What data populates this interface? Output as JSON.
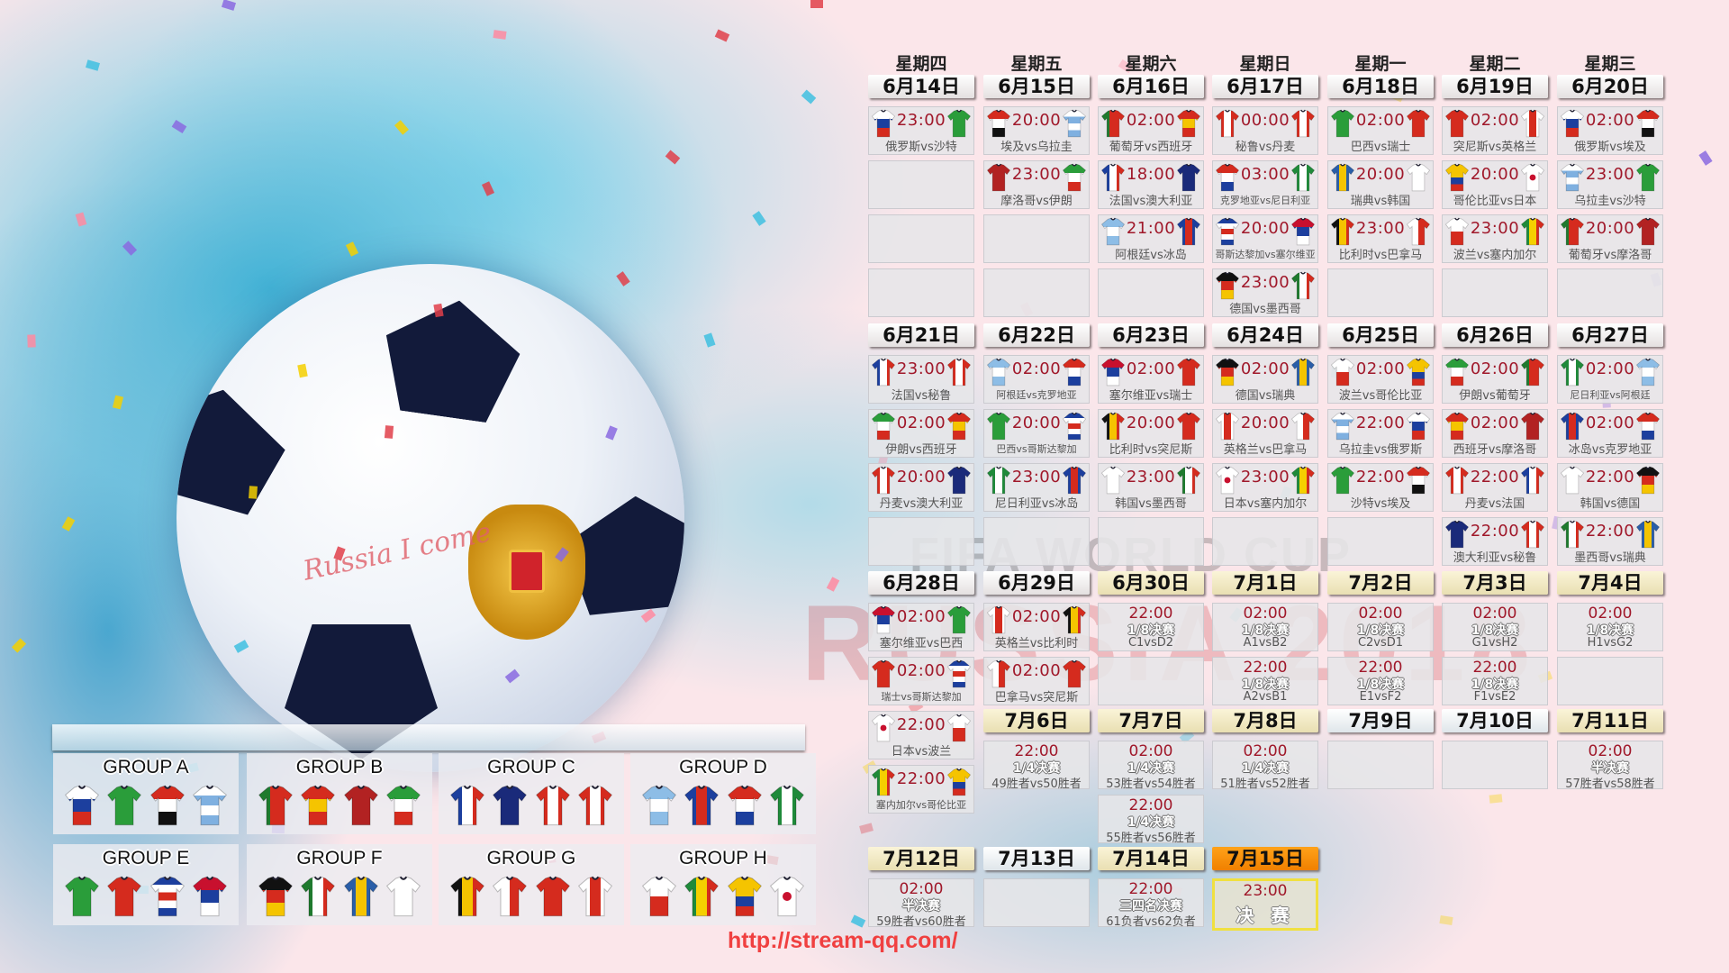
{
  "colors": {
    "time": "#a0182a",
    "final_header": "#f08000",
    "url": "#f04040"
  },
  "watermark": {
    "line1": "FIFA WORLD CUP",
    "line2": "RUSSIA 2018"
  },
  "ball_text": "Russia I come",
  "url": "http://stream-qq.com/",
  "weekdays": [
    "星期四",
    "星期五",
    "星期六",
    "星期日",
    "星期一",
    "星期二",
    "星期三"
  ],
  "weeks": [
    {
      "days": [
        {
          "date": "6月14日",
          "kind": "group",
          "matches": [
            {
              "time": "23:00",
              "home": "kit-russia",
              "away": "kit-saudi",
              "label": "俄罗斯vs沙特"
            },
            null,
            null,
            null
          ]
        },
        {
          "date": "6月15日",
          "kind": "group",
          "matches": [
            {
              "time": "20:00",
              "home": "kit-egypt",
              "away": "kit-uruguay",
              "label": "埃及vs乌拉圭"
            },
            {
              "time": "23:00",
              "home": "kit-morocco",
              "away": "kit-iran",
              "label": "摩洛哥vs伊朗"
            },
            null,
            null
          ]
        },
        {
          "date": "6月16日",
          "kind": "group",
          "matches": [
            {
              "time": "02:00",
              "home": "kit-portugal",
              "away": "kit-spain",
              "label": "葡萄牙vs西班牙"
            },
            {
              "time": "18:00",
              "home": "kit-france",
              "away": "kit-australia",
              "label": "法国vs澳大利亚"
            },
            {
              "time": "21:00",
              "home": "kit-argentina",
              "away": "kit-iceland",
              "label": "阿根廷vs冰岛"
            },
            null
          ]
        },
        {
          "date": "6月17日",
          "kind": "group",
          "matches": [
            {
              "time": "00:00",
              "home": "kit-peru",
              "away": "kit-denmark",
              "label": "秘鲁vs丹麦"
            },
            {
              "time": "03:00",
              "home": "kit-croatia",
              "away": "kit-nigeria",
              "label": "克罗地亚vs尼日利亚"
            },
            {
              "time": "20:00",
              "home": "kit-costarica",
              "away": "kit-serbia",
              "label": "哥斯达黎加vs塞尔维亚"
            },
            {
              "time": "23:00",
              "home": "kit-germany",
              "away": "kit-mexico",
              "label": "德国vs墨西哥"
            }
          ]
        },
        {
          "date": "6月18日",
          "kind": "group",
          "matches": [
            {
              "time": "02:00",
              "home": "kit-brazil",
              "away": "kit-switzerland",
              "label": "巴西vs瑞士"
            },
            {
              "time": "20:00",
              "home": "kit-sweden",
              "away": "kit-korea",
              "label": "瑞典vs韩国"
            },
            {
              "time": "23:00",
              "home": "kit-belgium",
              "away": "kit-panama",
              "label": "比利时vs巴拿马"
            },
            null
          ]
        },
        {
          "date": "6月19日",
          "kind": "group",
          "matches": [
            {
              "time": "02:00",
              "home": "kit-tunisia",
              "away": "kit-england",
              "label": "突尼斯vs英格兰"
            },
            {
              "time": "20:00",
              "home": "kit-colombia",
              "away": "kit-japan",
              "label": "哥伦比亚vs日本"
            },
            {
              "time": "23:00",
              "home": "kit-poland",
              "away": "kit-senegal",
              "label": "波兰vs塞内加尔"
            },
            null
          ]
        },
        {
          "date": "6月20日",
          "kind": "group",
          "matches": [
            {
              "time": "02:00",
              "home": "kit-russia",
              "away": "kit-egypt",
              "label": "俄罗斯vs埃及"
            },
            {
              "time": "23:00",
              "home": "kit-uruguay",
              "away": "kit-saudi",
              "label": "乌拉圭vs沙特"
            },
            {
              "time": "20:00",
              "home": "kit-portugal",
              "away": "kit-morocco",
              "label": "葡萄牙vs摩洛哥"
            },
            null
          ]
        }
      ]
    },
    {
      "days": [
        {
          "date": "6月21日",
          "kind": "group",
          "matches": [
            {
              "time": "23:00",
              "home": "kit-france",
              "away": "kit-peru",
              "label": "法国vs秘鲁"
            },
            {
              "time": "02:00",
              "home": "kit-iran",
              "away": "kit-spain",
              "label": "伊朗vs西班牙"
            },
            {
              "time": "20:00",
              "home": "kit-denmark",
              "away": "kit-australia",
              "label": "丹麦vs澳大利亚"
            },
            null
          ]
        },
        {
          "date": "6月22日",
          "kind": "group",
          "matches": [
            {
              "time": "02:00",
              "home": "kit-argentina",
              "away": "kit-croatia",
              "label": "阿根廷vs克罗地亚"
            },
            {
              "time": "20:00",
              "home": "kit-brazil",
              "away": "kit-costarica",
              "label": "巴西vs哥斯达黎加"
            },
            {
              "time": "23:00",
              "home": "kit-nigeria",
              "away": "kit-iceland",
              "label": "尼日利亚vs冰岛"
            },
            null
          ]
        },
        {
          "date": "6月23日",
          "kind": "group",
          "matches": [
            {
              "time": "02:00",
              "home": "kit-serbia",
              "away": "kit-switzerland",
              "label": "塞尔维亚vs瑞士"
            },
            {
              "time": "20:00",
              "home": "kit-belgium",
              "away": "kit-tunisia",
              "label": "比利时vs突尼斯"
            },
            {
              "time": "23:00",
              "home": "kit-korea",
              "away": "kit-mexico",
              "label": "韩国vs墨西哥"
            },
            null
          ]
        },
        {
          "date": "6月24日",
          "kind": "group",
          "matches": [
            {
              "time": "02:00",
              "home": "kit-germany",
              "away": "kit-sweden",
              "label": "德国vs瑞典"
            },
            {
              "time": "20:00",
              "home": "kit-england",
              "away": "kit-panama",
              "label": "英格兰vs巴拿马"
            },
            {
              "time": "23:00",
              "home": "kit-japan",
              "away": "kit-senegal",
              "label": "日本vs塞内加尔"
            },
            null
          ]
        },
        {
          "date": "6月25日",
          "kind": "group",
          "matches": [
            {
              "time": "02:00",
              "home": "kit-poland",
              "away": "kit-colombia",
              "label": "波兰vs哥伦比亚"
            },
            {
              "time": "22:00",
              "home": "kit-uruguay",
              "away": "kit-russia",
              "label": "乌拉圭vs俄罗斯"
            },
            {
              "time": "22:00",
              "home": "kit-saudi",
              "away": "kit-egypt",
              "label": "沙特vs埃及"
            },
            null
          ]
        },
        {
          "date": "6月26日",
          "kind": "group",
          "matches": [
            {
              "time": "02:00",
              "home": "kit-iran",
              "away": "kit-portugal",
              "label": "伊朗vs葡萄牙"
            },
            {
              "time": "02:00",
              "home": "kit-spain",
              "away": "kit-morocco",
              "label": "西班牙vs摩洛哥"
            },
            {
              "time": "22:00",
              "home": "kit-denmark",
              "away": "kit-france",
              "label": "丹麦vs法国"
            },
            {
              "time": "22:00",
              "home": "kit-australia",
              "away": "kit-peru",
              "label": "澳大利亚vs秘鲁"
            }
          ]
        },
        {
          "date": "6月27日",
          "kind": "group",
          "matches": [
            {
              "time": "02:00",
              "home": "kit-nigeria",
              "away": "kit-argentina",
              "label": "尼日利亚vs阿根廷"
            },
            {
              "time": "02:00",
              "home": "kit-iceland",
              "away": "kit-croatia",
              "label": "冰岛vs克罗地亚"
            },
            {
              "time": "22:00",
              "home": "kit-korea",
              "away": "kit-germany",
              "label": "韩国vs德国"
            },
            {
              "time": "22:00",
              "home": "kit-mexico",
              "away": "kit-sweden",
              "label": "墨西哥vs瑞典"
            }
          ]
        }
      ]
    },
    {
      "days": [
        {
          "date": "6月28日",
          "kind": "group",
          "matches": [
            {
              "time": "02:00",
              "home": "kit-serbia",
              "away": "kit-brazil",
              "label": "塞尔维亚vs巴西"
            },
            {
              "time": "02:00",
              "home": "kit-switzerland",
              "away": "kit-costarica",
              "label": "瑞士vs哥斯达黎加"
            },
            {
              "time": "22:00",
              "home": "kit-japan",
              "away": "kit-poland",
              "label": "日本vs波兰"
            },
            {
              "time": "22:00",
              "home": "kit-senegal",
              "away": "kit-colombia",
              "label": "塞内加尔vs哥伦比亚"
            }
          ]
        },
        {
          "date": "6月29日",
          "kind": "group",
          "matches": [
            {
              "time": "02:00",
              "home": "kit-england",
              "away": "kit-belgium",
              "label": "英格兰vs比利时"
            },
            {
              "time": "02:00",
              "home": "kit-panama",
              "away": "kit-tunisia",
              "label": "巴拿马vs突尼斯"
            }
          ]
        },
        {
          "date": "6月30日",
          "kind": "knockout",
          "matches": [
            {
              "time": "22:00",
              "round": "1/8决赛",
              "pair": "C1vsD2"
            },
            null
          ]
        },
        {
          "date": "7月1日",
          "kind": "knockout",
          "matches": [
            {
              "time": "02:00",
              "round": "1/8决赛",
              "pair": "A1vsB2"
            },
            {
              "time": "22:00",
              "round": "1/8决赛",
              "pair": "A2vsB1"
            }
          ]
        },
        {
          "date": "7月2日",
          "kind": "knockout",
          "matches": [
            {
              "time": "02:00",
              "round": "1/8决赛",
              "pair": "C2vsD1"
            },
            {
              "time": "22:00",
              "round": "1/8决赛",
              "pair": "E1vsF2"
            }
          ]
        },
        {
          "date": "7月3日",
          "kind": "knockout",
          "matches": [
            {
              "time": "02:00",
              "round": "1/8决赛",
              "pair": "G1vsH2"
            },
            {
              "time": "22:00",
              "round": "1/8决赛",
              "pair": "F1vsE2"
            }
          ]
        },
        {
          "date": "7月4日",
          "kind": "knockout",
          "matches": [
            {
              "time": "02:00",
              "round": "1/8决赛",
              "pair": "H1vsG2"
            },
            null
          ]
        }
      ]
    },
    {
      "days": [
        {
          "date": "7月6日",
          "kind": "knockout",
          "matches": [
            {
              "time": "22:00",
              "round": "1/4决赛",
              "pair": "49胜者vs50胜者"
            }
          ]
        },
        {
          "date": "7月7日",
          "kind": "knockout",
          "matches": [
            {
              "time": "02:00",
              "round": "1/4决赛",
              "pair": "53胜者vs54胜者"
            },
            {
              "time": "22:00",
              "round": "1/4决赛",
              "pair": "55胜者vs56胜者"
            }
          ]
        },
        {
          "date": "7月8日",
          "kind": "knockout",
          "matches": [
            {
              "time": "02:00",
              "round": "1/4决赛",
              "pair": "51胜者vs52胜者"
            }
          ]
        },
        {
          "date": "7月9日",
          "kind": "rest",
          "matches": [
            null
          ]
        },
        {
          "date": "7月10日",
          "kind": "rest",
          "matches": [
            null
          ]
        },
        {
          "date": "7月11日",
          "kind": "knockout",
          "matches": [
            {
              "time": "02:00",
              "round": "半决赛",
              "pair": "57胜者vs58胜者"
            }
          ]
        }
      ]
    },
    {
      "days": [
        {
          "date": "7月12日",
          "kind": "knockout",
          "matches": [
            {
              "time": "02:00",
              "round": "半决赛",
              "pair": "59胜者vs60胜者"
            }
          ]
        },
        {
          "date": "7月13日",
          "kind": "rest",
          "matches": [
            null
          ]
        },
        {
          "date": "7月14日",
          "kind": "knockout",
          "matches": [
            {
              "time": "22:00",
              "round": "三四名决赛",
              "pair": "61负者vs62负者"
            }
          ]
        },
        {
          "date": "7月15日",
          "kind": "final",
          "matches": [
            {
              "time": "23:00",
              "round": "决 赛"
            }
          ]
        }
      ]
    }
  ],
  "groups": [
    {
      "name": "GROUP A",
      "kits": [
        "kit-russia",
        "kit-saudi",
        "kit-egypt",
        "kit-uruguay"
      ]
    },
    {
      "name": "GROUP B",
      "kits": [
        "kit-portugal",
        "kit-spain",
        "kit-morocco",
        "kit-iran"
      ]
    },
    {
      "name": "GROUP C",
      "kits": [
        "kit-france",
        "kit-australia",
        "kit-peru",
        "kit-denmark"
      ]
    },
    {
      "name": "GROUP D",
      "kits": [
        "kit-argentina",
        "kit-iceland",
        "kit-croatia",
        "kit-nigeria"
      ]
    },
    {
      "name": "GROUP E",
      "kits": [
        "kit-brazil",
        "kit-switzerland",
        "kit-costarica",
        "kit-serbia"
      ]
    },
    {
      "name": "GROUP F",
      "kits": [
        "kit-germany",
        "kit-mexico",
        "kit-sweden",
        "kit-korea"
      ]
    },
    {
      "name": "GROUP G",
      "kits": [
        "kit-belgium",
        "kit-panama",
        "kit-tunisia",
        "kit-england"
      ]
    },
    {
      "name": "GROUP H",
      "kits": [
        "kit-poland",
        "kit-senegal",
        "kit-colombia",
        "kit-japan"
      ]
    }
  ]
}
